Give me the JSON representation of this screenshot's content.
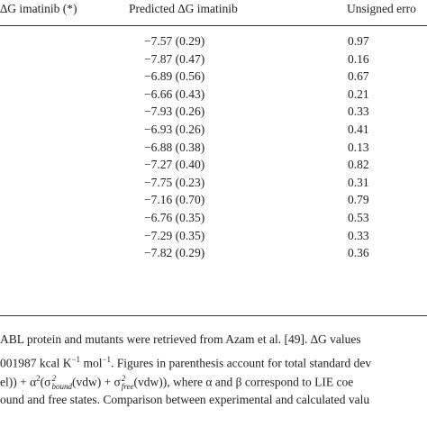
{
  "table": {
    "headers": [
      "∆G imatinib (*)",
      "Predicted ∆G imatinib",
      "Unsigned erro"
    ],
    "rows": [
      [
        "−7.57 (0.29)",
        "0.97"
      ],
      [
        "−7.87 (0.47)",
        "0.16"
      ],
      [
        "−6.89 (0.56)",
        "0.67"
      ],
      [
        "−6.66 (0.43)",
        "0.21"
      ],
      [
        "−7.93 (0.26)",
        "0.33"
      ],
      [
        "−6.93 (0.26)",
        "0.41"
      ],
      [
        "−6.88 (0.38)",
        "0.13"
      ],
      [
        "−7.27 (0.40)",
        "0.82"
      ],
      [
        "−7.75 (0.23)",
        "0.31"
      ],
      [
        "−7.16 (0.70)",
        "0.79"
      ],
      [
        "−6.76 (0.35)",
        "0.53"
      ],
      [
        "−7.29 (0.35)",
        "0.33"
      ],
      [
        "−7.82 (0.29)",
        "0.36"
      ]
    ]
  },
  "footnote": {
    "line1": "ABL protein and mutants were retrieved from Azam et al. [49]. ∆G values",
    "line2": [
      "001987 kcal K",
      "−1",
      " mol",
      "−1",
      ". Figures in parenthesis account for total standard dev"
    ],
    "line3": [
      "el)) + α",
      "2",
      "(σ",
      "2",
      "bound",
      "(vdw) + σ",
      "2",
      "free",
      "(vdw)), where α and β correspond to LIE coe"
    ],
    "line4": "ound and free states. Comparison between experimental and calculated valu"
  }
}
